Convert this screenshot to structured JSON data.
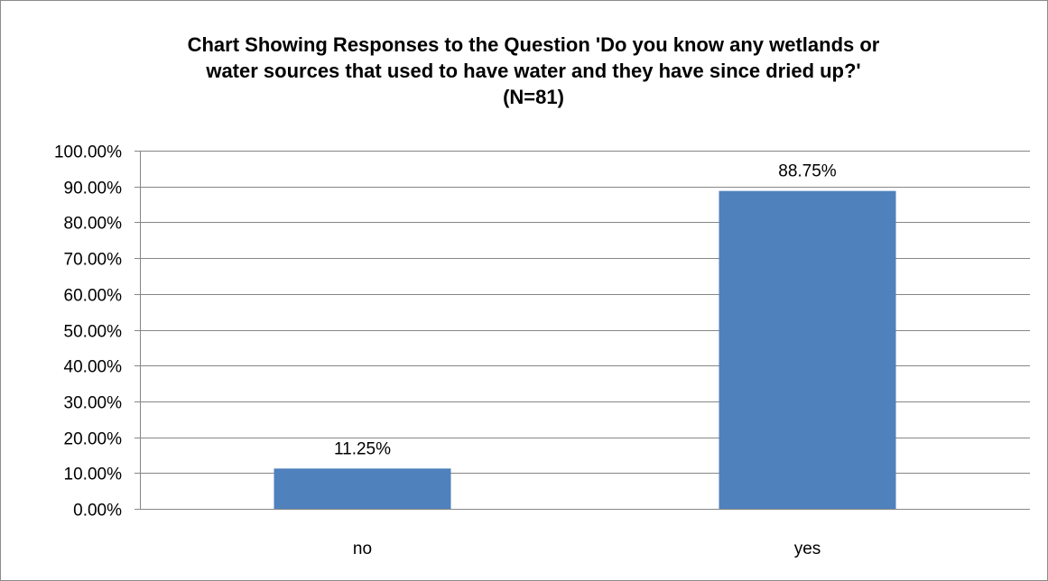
{
  "chart_data": {
    "type": "bar",
    "title_lines": [
      "Chart Showing Responses to the Question 'Do you know any wetlands or",
      "water sources that used to have water and they have since dried up?'",
      "(N=81)"
    ],
    "categories": [
      "no",
      "yes"
    ],
    "values": [
      11.25,
      88.75
    ],
    "data_labels": [
      "11.25%",
      "88.75%"
    ],
    "xlabel": "",
    "ylabel": "",
    "ylim": [
      0,
      100
    ],
    "y_ticks": [
      0,
      10,
      20,
      30,
      40,
      50,
      60,
      70,
      80,
      90,
      100
    ],
    "y_tick_labels": [
      "0.00%",
      "10.00%",
      "20.00%",
      "30.00%",
      "40.00%",
      "50.00%",
      "60.00%",
      "70.00%",
      "80.00%",
      "90.00%",
      "100.00%"
    ],
    "grid": true,
    "legend": "none",
    "bar_color": "#4f81bd",
    "grid_color": "#868686"
  }
}
